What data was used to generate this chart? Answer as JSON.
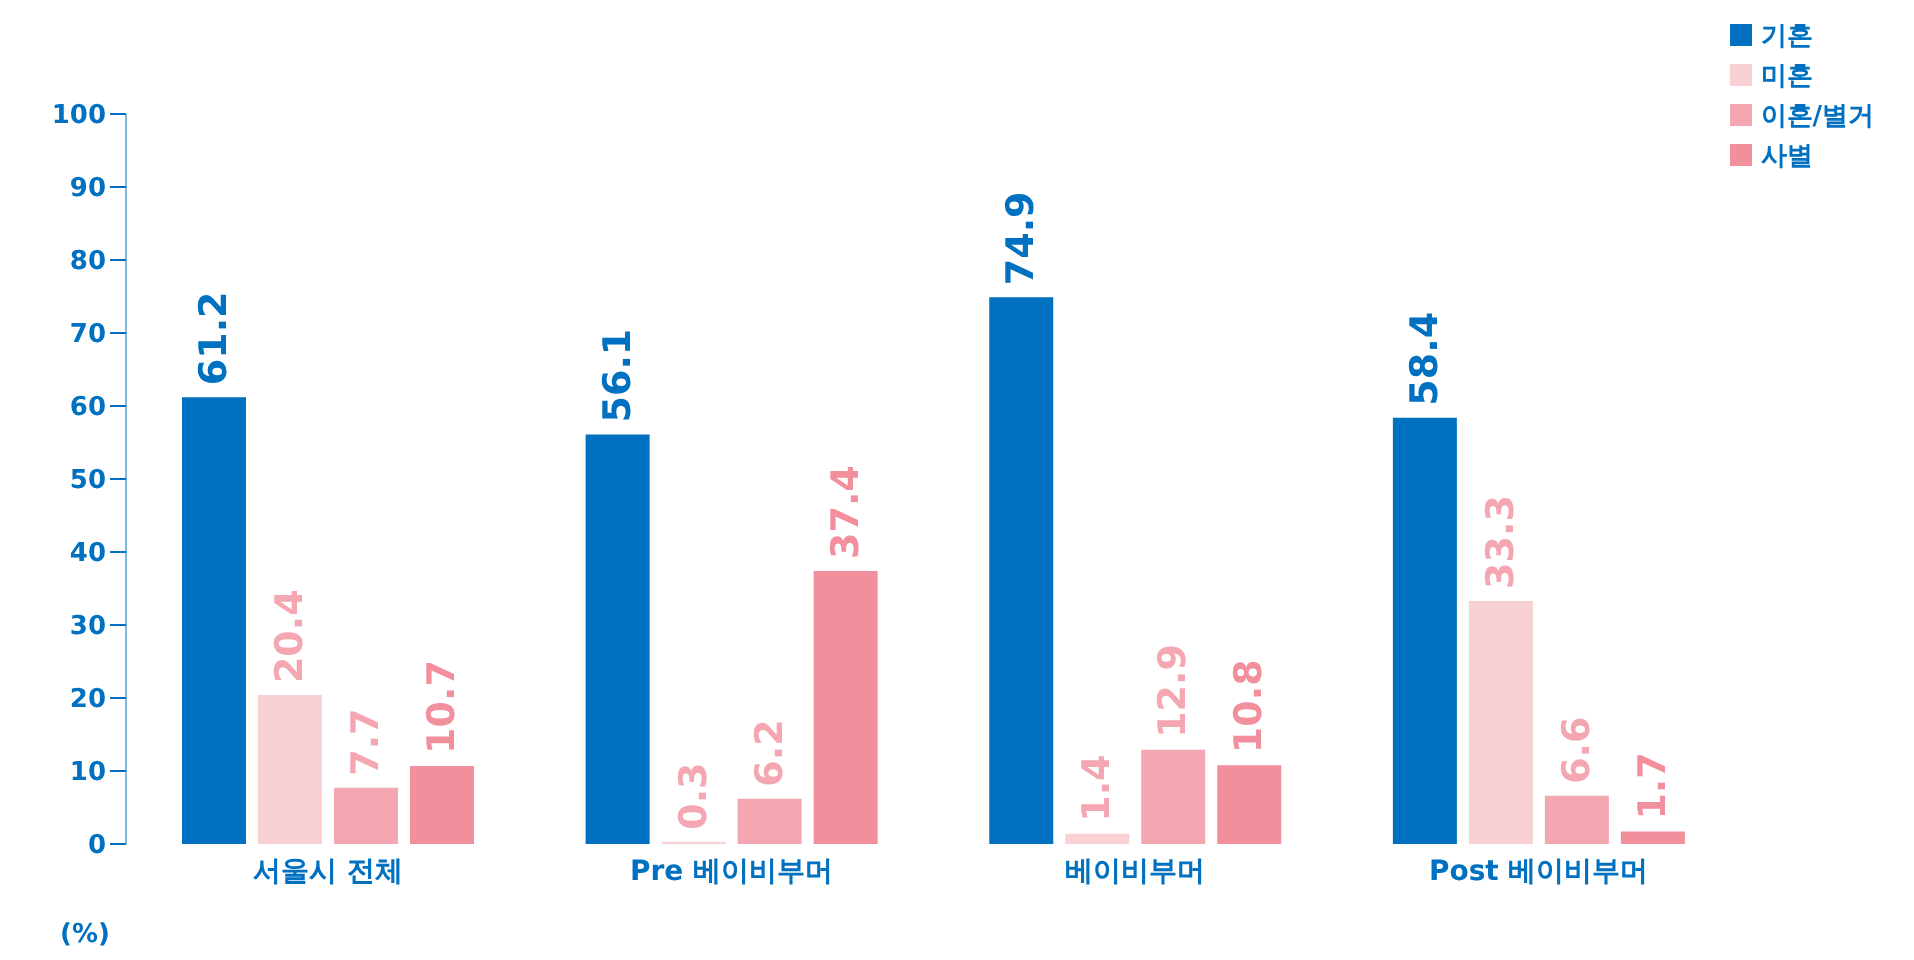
{
  "chart_data": {
    "type": "bar",
    "categories": [
      "서울시 전체",
      "Pre 베이비부머",
      "베이비부머",
      "Post 베이비부머"
    ],
    "series": [
      {
        "name": "기혼",
        "color": "#0070c0",
        "values": [
          61.2,
          56.1,
          74.9,
          58.4
        ]
      },
      {
        "name": "미혼",
        "color": "#f9d0d4",
        "values": [
          20.4,
          0.3,
          1.4,
          33.3
        ]
      },
      {
        "name": "이혼/별거",
        "color": "#f4a7b1",
        "values": [
          7.7,
          6.2,
          12.9,
          6.6
        ]
      },
      {
        "name": "사별",
        "color": "#f28f9c",
        "values": [
          10.7,
          37.4,
          10.8,
          1.7
        ]
      }
    ],
    "ylabel": "(%)",
    "ylim": [
      0,
      100
    ],
    "yticks": [
      0,
      10,
      20,
      30,
      40,
      50,
      60,
      70,
      80,
      90,
      100
    ],
    "data_labels": true,
    "legend": "top right",
    "grid": false
  }
}
